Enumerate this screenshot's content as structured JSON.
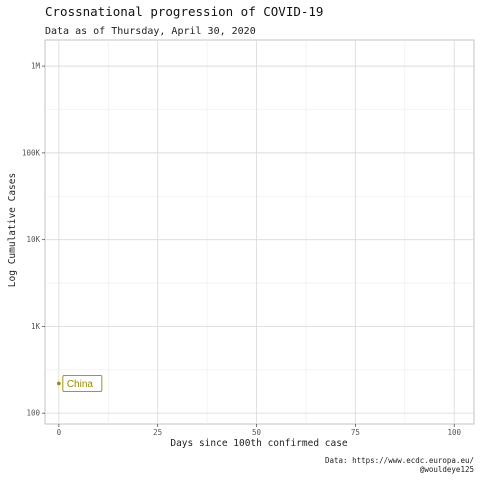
{
  "chart_data": {
    "type": "scatter",
    "title": "Crossnational progression of COVID-19",
    "subtitle": "Data as of Thursday, April 30, 2020",
    "xlabel": "Days since 100th confirmed case",
    "ylabel": "Log Cumulative Cases",
    "xlim": [
      -3.5,
      105
    ],
    "ylim": [
      75,
      2000000
    ],
    "y_scale": "log10",
    "x_ticks": [
      0,
      25,
      50,
      75,
      100
    ],
    "x_tick_labels": [
      "0",
      "25",
      "50",
      "75",
      "100"
    ],
    "y_ticks": [
      100,
      1000,
      10000,
      100000,
      1000000
    ],
    "y_tick_labels": [
      "100",
      "1K",
      "10K",
      "100K",
      "1M"
    ],
    "grid": true,
    "series": [
      {
        "name": "China",
        "color": "#9a8a00",
        "points": [
          {
            "x": 0,
            "y": 220
          }
        ]
      }
    ],
    "caption": [
      "Data: https://www.ecdc.europa.eu/",
      "@wouldeye125"
    ]
  }
}
